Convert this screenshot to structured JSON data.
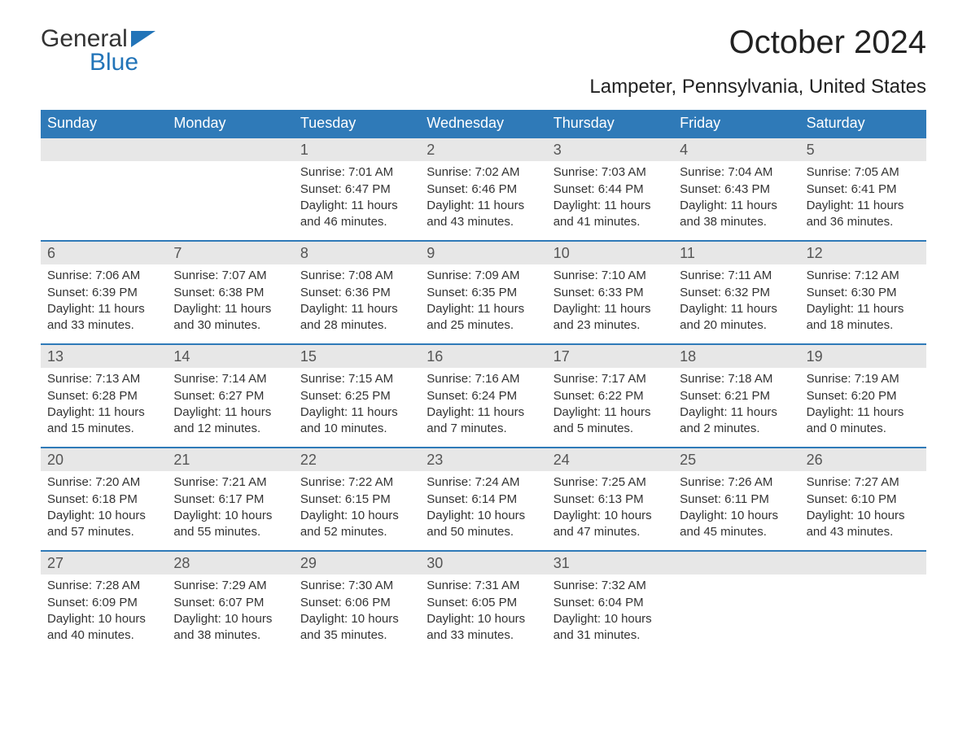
{
  "logo": {
    "top": "General",
    "bottom": "Blue"
  },
  "title": "October 2024",
  "location": "Lampeter, Pennsylvania, United States",
  "colors": {
    "accent": "#2f7ab8",
    "logo_blue": "#2274b8",
    "daynum_bg": "#e7e7e7",
    "text": "#333333",
    "bg": "#ffffff"
  },
  "dow": [
    "Sunday",
    "Monday",
    "Tuesday",
    "Wednesday",
    "Thursday",
    "Friday",
    "Saturday"
  ],
  "weeks": [
    [
      null,
      null,
      {
        "n": "1",
        "sunrise": "Sunrise: 7:01 AM",
        "sunset": "Sunset: 6:47 PM",
        "daylight": "Daylight: 11 hours and 46 minutes."
      },
      {
        "n": "2",
        "sunrise": "Sunrise: 7:02 AM",
        "sunset": "Sunset: 6:46 PM",
        "daylight": "Daylight: 11 hours and 43 minutes."
      },
      {
        "n": "3",
        "sunrise": "Sunrise: 7:03 AM",
        "sunset": "Sunset: 6:44 PM",
        "daylight": "Daylight: 11 hours and 41 minutes."
      },
      {
        "n": "4",
        "sunrise": "Sunrise: 7:04 AM",
        "sunset": "Sunset: 6:43 PM",
        "daylight": "Daylight: 11 hours and 38 minutes."
      },
      {
        "n": "5",
        "sunrise": "Sunrise: 7:05 AM",
        "sunset": "Sunset: 6:41 PM",
        "daylight": "Daylight: 11 hours and 36 minutes."
      }
    ],
    [
      {
        "n": "6",
        "sunrise": "Sunrise: 7:06 AM",
        "sunset": "Sunset: 6:39 PM",
        "daylight": "Daylight: 11 hours and 33 minutes."
      },
      {
        "n": "7",
        "sunrise": "Sunrise: 7:07 AM",
        "sunset": "Sunset: 6:38 PM",
        "daylight": "Daylight: 11 hours and 30 minutes."
      },
      {
        "n": "8",
        "sunrise": "Sunrise: 7:08 AM",
        "sunset": "Sunset: 6:36 PM",
        "daylight": "Daylight: 11 hours and 28 minutes."
      },
      {
        "n": "9",
        "sunrise": "Sunrise: 7:09 AM",
        "sunset": "Sunset: 6:35 PM",
        "daylight": "Daylight: 11 hours and 25 minutes."
      },
      {
        "n": "10",
        "sunrise": "Sunrise: 7:10 AM",
        "sunset": "Sunset: 6:33 PM",
        "daylight": "Daylight: 11 hours and 23 minutes."
      },
      {
        "n": "11",
        "sunrise": "Sunrise: 7:11 AM",
        "sunset": "Sunset: 6:32 PM",
        "daylight": "Daylight: 11 hours and 20 minutes."
      },
      {
        "n": "12",
        "sunrise": "Sunrise: 7:12 AM",
        "sunset": "Sunset: 6:30 PM",
        "daylight": "Daylight: 11 hours and 18 minutes."
      }
    ],
    [
      {
        "n": "13",
        "sunrise": "Sunrise: 7:13 AM",
        "sunset": "Sunset: 6:28 PM",
        "daylight": "Daylight: 11 hours and 15 minutes."
      },
      {
        "n": "14",
        "sunrise": "Sunrise: 7:14 AM",
        "sunset": "Sunset: 6:27 PM",
        "daylight": "Daylight: 11 hours and 12 minutes."
      },
      {
        "n": "15",
        "sunrise": "Sunrise: 7:15 AM",
        "sunset": "Sunset: 6:25 PM",
        "daylight": "Daylight: 11 hours and 10 minutes."
      },
      {
        "n": "16",
        "sunrise": "Sunrise: 7:16 AM",
        "sunset": "Sunset: 6:24 PM",
        "daylight": "Daylight: 11 hours and 7 minutes."
      },
      {
        "n": "17",
        "sunrise": "Sunrise: 7:17 AM",
        "sunset": "Sunset: 6:22 PM",
        "daylight": "Daylight: 11 hours and 5 minutes."
      },
      {
        "n": "18",
        "sunrise": "Sunrise: 7:18 AM",
        "sunset": "Sunset: 6:21 PM",
        "daylight": "Daylight: 11 hours and 2 minutes."
      },
      {
        "n": "19",
        "sunrise": "Sunrise: 7:19 AM",
        "sunset": "Sunset: 6:20 PM",
        "daylight": "Daylight: 11 hours and 0 minutes."
      }
    ],
    [
      {
        "n": "20",
        "sunrise": "Sunrise: 7:20 AM",
        "sunset": "Sunset: 6:18 PM",
        "daylight": "Daylight: 10 hours and 57 minutes."
      },
      {
        "n": "21",
        "sunrise": "Sunrise: 7:21 AM",
        "sunset": "Sunset: 6:17 PM",
        "daylight": "Daylight: 10 hours and 55 minutes."
      },
      {
        "n": "22",
        "sunrise": "Sunrise: 7:22 AM",
        "sunset": "Sunset: 6:15 PM",
        "daylight": "Daylight: 10 hours and 52 minutes."
      },
      {
        "n": "23",
        "sunrise": "Sunrise: 7:24 AM",
        "sunset": "Sunset: 6:14 PM",
        "daylight": "Daylight: 10 hours and 50 minutes."
      },
      {
        "n": "24",
        "sunrise": "Sunrise: 7:25 AM",
        "sunset": "Sunset: 6:13 PM",
        "daylight": "Daylight: 10 hours and 47 minutes."
      },
      {
        "n": "25",
        "sunrise": "Sunrise: 7:26 AM",
        "sunset": "Sunset: 6:11 PM",
        "daylight": "Daylight: 10 hours and 45 minutes."
      },
      {
        "n": "26",
        "sunrise": "Sunrise: 7:27 AM",
        "sunset": "Sunset: 6:10 PM",
        "daylight": "Daylight: 10 hours and 43 minutes."
      }
    ],
    [
      {
        "n": "27",
        "sunrise": "Sunrise: 7:28 AM",
        "sunset": "Sunset: 6:09 PM",
        "daylight": "Daylight: 10 hours and 40 minutes."
      },
      {
        "n": "28",
        "sunrise": "Sunrise: 7:29 AM",
        "sunset": "Sunset: 6:07 PM",
        "daylight": "Daylight: 10 hours and 38 minutes."
      },
      {
        "n": "29",
        "sunrise": "Sunrise: 7:30 AM",
        "sunset": "Sunset: 6:06 PM",
        "daylight": "Daylight: 10 hours and 35 minutes."
      },
      {
        "n": "30",
        "sunrise": "Sunrise: 7:31 AM",
        "sunset": "Sunset: 6:05 PM",
        "daylight": "Daylight: 10 hours and 33 minutes."
      },
      {
        "n": "31",
        "sunrise": "Sunrise: 7:32 AM",
        "sunset": "Sunset: 6:04 PM",
        "daylight": "Daylight: 10 hours and 31 minutes."
      },
      null,
      null
    ]
  ]
}
